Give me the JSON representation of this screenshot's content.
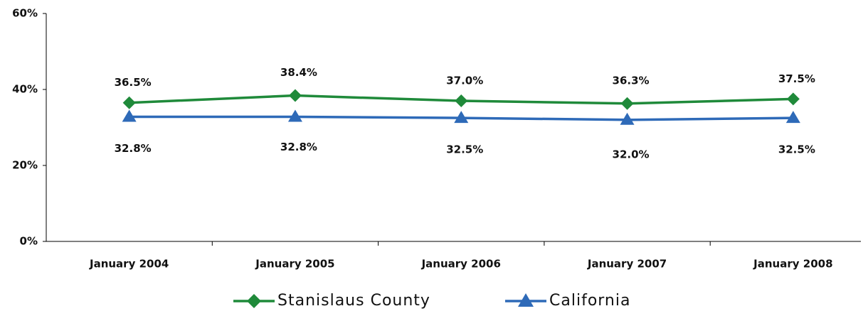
{
  "chart_data": {
    "type": "line",
    "categories": [
      "January 2004",
      "January 2005",
      "January 2006",
      "January 2007",
      "January 2008"
    ],
    "series": [
      {
        "name": "Stanislaus County",
        "color": "#1f8a3a",
        "marker": "diamond",
        "values": [
          36.5,
          38.4,
          37.0,
          36.3,
          37.5
        ],
        "value_labels": [
          "36.5%",
          "38.4%",
          "37.0%",
          "36.3%",
          "37.5%"
        ]
      },
      {
        "name": "California",
        "color": "#2e6ab8",
        "marker": "triangle",
        "values": [
          32.8,
          32.8,
          32.5,
          32.0,
          32.5
        ],
        "value_labels": [
          "32.8%",
          "32.8%",
          "32.5%",
          "32.0%",
          "32.5%"
        ]
      }
    ],
    "ylim": [
      0,
      60
    ],
    "yticks": [
      {
        "value": 0,
        "label": "0%"
      },
      {
        "value": 20,
        "label": "20%"
      },
      {
        "value": 40,
        "label": "40%"
      },
      {
        "value": 60,
        "label": "60%"
      }
    ],
    "grid": false,
    "legend": "bottom"
  }
}
